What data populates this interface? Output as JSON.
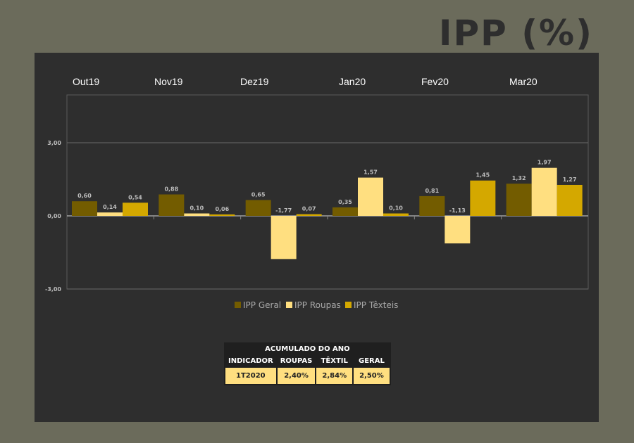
{
  "title": "IPP (%)",
  "chart_data": {
    "type": "bar",
    "categories": [
      "Out19",
      "Nov19",
      "Dez19",
      "Jan20",
      "Fev20",
      "Mar20"
    ],
    "series": [
      {
        "name": "IPP Geral",
        "color": "#735c00",
        "values": [
          0.6,
          0.88,
          0.65,
          0.35,
          0.81,
          1.32
        ],
        "labels": [
          "0,60",
          "0,88",
          "0,65",
          "0,35",
          "0,81",
          "1,32"
        ]
      },
      {
        "name": "IPP Roupas",
        "color": "#ffdf80",
        "values": [
          0.14,
          0.1,
          -1.77,
          1.57,
          -1.13,
          1.97
        ],
        "labels": [
          "0,14",
          "0,10",
          "-1,77",
          "1,57",
          "-1,13",
          "1,97"
        ]
      },
      {
        "name": "IPP Têxteis",
        "color": "#d4a800",
        "values": [
          0.54,
          0.06,
          0.07,
          0.1,
          1.45,
          1.27
        ],
        "labels": [
          "0,54",
          "0,06",
          "0,07",
          "0,10",
          "1,45",
          "1,27"
        ]
      }
    ],
    "yticks": [
      3,
      0,
      -3
    ],
    "ytick_labels": [
      "3,00",
      "0,00",
      "-3,00"
    ],
    "ylim": [
      -3,
      5
    ],
    "legend": "bottom"
  },
  "table": {
    "header": "ACUMULADO DO ANO",
    "columns": [
      "INDICADOR",
      "ROUPAS",
      "TÊXTIL",
      "GERAL"
    ],
    "row": [
      "1T2020",
      "2,40%",
      "2,84%",
      "2,50%"
    ]
  }
}
